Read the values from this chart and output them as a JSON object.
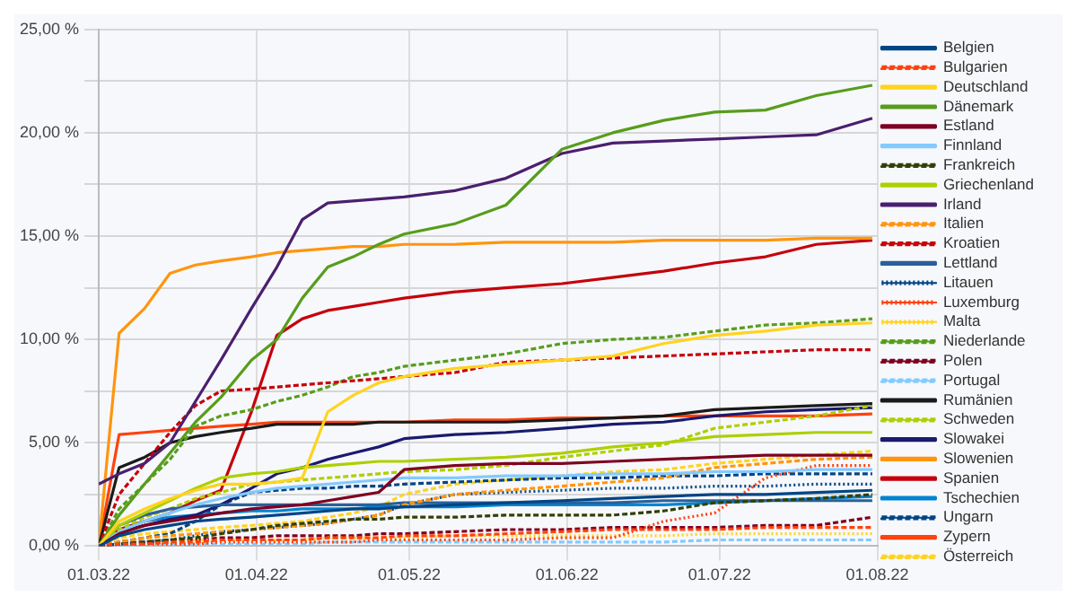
{
  "chart_data": {
    "type": "line",
    "x": [
      "2022-03-01",
      "2022-03-05",
      "2022-03-10",
      "2022-03-15",
      "2022-03-20",
      "2022-03-25",
      "2022-03-31",
      "2022-04-05",
      "2022-04-10",
      "2022-04-15",
      "2022-04-20",
      "2022-04-25",
      "2022-04-30",
      "2022-05-10",
      "2022-05-20",
      "2022-05-31",
      "2022-06-10",
      "2022-06-20",
      "2022-06-30",
      "2022-07-10",
      "2022-07-20",
      "2022-07-31"
    ],
    "xlim": [
      "2022-03-01",
      "2022-08-01"
    ],
    "xticks": [
      {
        "value": "2022-03-01",
        "label": "01.03.22"
      },
      {
        "value": "2022-04-01",
        "label": "01.04.22"
      },
      {
        "value": "2022-05-01",
        "label": "01.05.22"
      },
      {
        "value": "2022-06-01",
        "label": "01.06.22"
      },
      {
        "value": "2022-07-01",
        "label": "01.07.22"
      },
      {
        "value": "2022-08-01",
        "label": "01.08.22"
      }
    ],
    "ylim": [
      0,
      25
    ],
    "yticks": [
      {
        "value": 0,
        "label": "0,00 %"
      },
      {
        "value": 2.5,
        "label": null
      },
      {
        "value": 5,
        "label": "5,00 %"
      },
      {
        "value": 7.5,
        "label": null
      },
      {
        "value": 10,
        "label": "10,00 %"
      },
      {
        "value": 12.5,
        "label": null
      },
      {
        "value": 15,
        "label": "15,00 %"
      },
      {
        "value": 17.5,
        "label": null
      },
      {
        "value": 20,
        "label": "20,00 %"
      },
      {
        "value": 22.5,
        "label": null
      },
      {
        "value": 25,
        "label": "25,00 %"
      }
    ],
    "grid": true,
    "legend": "right",
    "marker": "none",
    "series": [
      {
        "name": "Belgien",
        "color": "#004586",
        "line_style": "solid",
        "values": [
          0,
          0.5,
          0.8,
          1.0,
          1.2,
          1.3,
          1.4,
          1.5,
          1.6,
          1.7,
          1.8,
          1.8,
          1.9,
          2.0,
          2.1,
          2.2,
          2.3,
          2.4,
          2.5,
          2.5,
          2.6,
          2.7
        ]
      },
      {
        "name": "Bulgarien",
        "color": "#ff420e",
        "line_style": "dashed",
        "values": [
          0,
          0.1,
          0.1,
          0.2,
          0.2,
          0.3,
          0.3,
          0.3,
          0.3,
          0.4,
          0.4,
          0.4,
          0.5,
          0.5,
          0.6,
          0.7,
          0.8,
          0.8,
          0.8,
          0.9,
          0.9,
          0.9
        ]
      },
      {
        "name": "Deutschland",
        "color": "#ffd320",
        "line_style": "solid",
        "values": [
          0,
          1.2,
          1.8,
          2.3,
          2.7,
          3.0,
          3.0,
          3.1,
          3.3,
          6.5,
          7.3,
          7.9,
          8.2,
          8.6,
          8.8,
          9.0,
          9.2,
          9.8,
          10.2,
          10.4,
          10.7,
          10.8
        ]
      },
      {
        "name": "Dänemark",
        "color": "#579d1c",
        "line_style": "solid",
        "values": [
          0,
          1.5,
          3.0,
          4.5,
          6.0,
          7.2,
          9.0,
          10.0,
          12.0,
          13.5,
          14.0,
          14.6,
          15.1,
          15.6,
          16.5,
          19.2,
          20.0,
          20.6,
          21.0,
          21.1,
          21.8,
          22.3
        ]
      },
      {
        "name": "Estland",
        "color": "#7e0021",
        "line_style": "solid",
        "values": [
          0,
          0.6,
          1.0,
          1.2,
          1.4,
          1.6,
          1.8,
          1.9,
          2.0,
          2.2,
          2.4,
          2.6,
          3.7,
          3.9,
          4.0,
          4.0,
          4.1,
          4.2,
          4.3,
          4.4,
          4.4,
          4.4
        ]
      },
      {
        "name": "Finnland",
        "color": "#83caff",
        "line_style": "solid",
        "values": [
          0,
          0.7,
          1.2,
          1.6,
          2.0,
          2.3,
          2.6,
          2.8,
          2.9,
          3.0,
          3.1,
          3.2,
          3.3,
          3.3,
          3.4,
          3.4,
          3.5,
          3.5,
          3.6,
          3.6,
          3.7,
          3.7
        ]
      },
      {
        "name": "Frankreich",
        "color": "#314004",
        "line_style": "dashed",
        "values": [
          0,
          0.1,
          0.2,
          0.3,
          0.4,
          0.6,
          0.8,
          1.0,
          1.1,
          1.2,
          1.3,
          1.3,
          1.4,
          1.4,
          1.5,
          1.5,
          1.5,
          1.7,
          2.1,
          2.2,
          2.3,
          2.5
        ]
      },
      {
        "name": "Griechenland",
        "color": "#aecf00",
        "line_style": "solid",
        "values": [
          0,
          1.0,
          1.6,
          2.2,
          2.8,
          3.3,
          3.5,
          3.6,
          3.8,
          3.9,
          4.0,
          4.1,
          4.1,
          4.2,
          4.3,
          4.5,
          4.8,
          5.0,
          5.3,
          5.4,
          5.5,
          5.5
        ]
      },
      {
        "name": "Irland",
        "color": "#4b1f6f",
        "line_style": "solid",
        "values": [
          3.0,
          3.5,
          4.0,
          5.0,
          7.0,
          9.0,
          11.5,
          13.5,
          15.8,
          16.6,
          16.7,
          16.8,
          16.9,
          17.2,
          17.8,
          19.0,
          19.5,
          19.6,
          19.7,
          19.8,
          19.9,
          20.7
        ]
      },
      {
        "name": "Italien",
        "color": "#ff950e",
        "line_style": "dashed",
        "values": [
          0,
          0.2,
          0.4,
          0.5,
          0.6,
          0.7,
          0.8,
          0.9,
          1.0,
          1.1,
          1.3,
          1.5,
          2.0,
          2.5,
          2.7,
          2.9,
          3.1,
          3.3,
          3.8,
          4.0,
          4.2,
          4.3
        ]
      },
      {
        "name": "Kroatien",
        "color": "#c5000b",
        "line_style": "dashed",
        "values": [
          0,
          2.5,
          4.0,
          5.5,
          6.8,
          7.5,
          7.6,
          7.7,
          7.8,
          7.9,
          8.0,
          8.1,
          8.2,
          8.4,
          8.9,
          9.0,
          9.1,
          9.2,
          9.3,
          9.4,
          9.5,
          9.5
        ]
      },
      {
        "name": "Lettland",
        "color": "#2a6099",
        "line_style": "solid",
        "values": [
          0,
          1.0,
          1.5,
          1.8,
          1.9,
          2.0,
          2.0,
          2.0,
          2.0,
          2.0,
          2.0,
          2.0,
          2.1,
          2.1,
          2.1,
          2.1,
          2.1,
          2.2,
          2.2,
          2.2,
          2.2,
          2.2
        ]
      },
      {
        "name": "Litauen",
        "color": "#004586",
        "line_style": "dotted",
        "values": [
          0,
          0.1,
          0.2,
          0.3,
          0.5,
          0.7,
          0.8,
          0.9,
          1.0,
          1.1,
          1.3,
          1.5,
          2.0,
          2.5,
          2.6,
          2.7,
          2.8,
          2.8,
          2.9,
          2.9,
          3.0,
          3.0
        ]
      },
      {
        "name": "Luxemburg",
        "color": "#ff420e",
        "line_style": "dotted",
        "values": [
          0,
          0.1,
          0.1,
          0.1,
          0.1,
          0.2,
          0.2,
          0.2,
          0.2,
          0.2,
          0.2,
          0.3,
          0.3,
          0.3,
          0.3,
          0.4,
          0.4,
          1.2,
          1.6,
          3.3,
          3.9,
          3.9
        ]
      },
      {
        "name": "Malta",
        "color": "#ffd320",
        "line_style": "dotted",
        "values": [
          0,
          0.1,
          0.2,
          0.2,
          0.3,
          0.3,
          0.3,
          0.3,
          0.3,
          0.4,
          0.4,
          0.4,
          0.4,
          0.5,
          0.5,
          0.5,
          0.5,
          0.5,
          0.6,
          0.6,
          0.6,
          0.6
        ]
      },
      {
        "name": "Niederlande",
        "color": "#579d1c",
        "line_style": "dashed",
        "values": [
          0,
          1.8,
          3.0,
          4.2,
          5.8,
          6.3,
          6.6,
          7.0,
          7.3,
          7.7,
          8.2,
          8.4,
          8.7,
          9.0,
          9.3,
          9.8,
          10.0,
          10.1,
          10.4,
          10.7,
          10.8,
          11.0
        ]
      },
      {
        "name": "Polen",
        "color": "#7e0021",
        "line_style": "dashed",
        "values": [
          0,
          0.1,
          0.2,
          0.3,
          0.3,
          0.4,
          0.4,
          0.5,
          0.5,
          0.5,
          0.5,
          0.6,
          0.6,
          0.7,
          0.8,
          0.8,
          0.9,
          0.9,
          0.9,
          1.0,
          1.0,
          1.4
        ]
      },
      {
        "name": "Portugal",
        "color": "#83caff",
        "line_style": "dashed",
        "values": [
          0,
          0.0,
          0.1,
          0.1,
          0.1,
          0.1,
          0.1,
          0.1,
          0.1,
          0.2,
          0.2,
          0.2,
          0.2,
          0.2,
          0.2,
          0.2,
          0.2,
          0.2,
          0.3,
          0.3,
          0.3,
          0.3
        ]
      },
      {
        "name": "Rumänien",
        "color": "#1a1a1a",
        "line_style": "solid",
        "values": [
          0,
          3.8,
          4.3,
          5.0,
          5.3,
          5.5,
          5.7,
          5.9,
          5.9,
          5.9,
          5.9,
          6.0,
          6.0,
          6.0,
          6.0,
          6.1,
          6.2,
          6.3,
          6.6,
          6.7,
          6.8,
          6.9
        ]
      },
      {
        "name": "Schweden",
        "color": "#aecf00",
        "line_style": "dashed",
        "values": [
          0,
          0.8,
          1.4,
          1.8,
          2.3,
          2.6,
          3.0,
          3.1,
          3.2,
          3.3,
          3.4,
          3.5,
          3.6,
          3.7,
          3.9,
          4.3,
          4.6,
          4.9,
          5.7,
          6.0,
          6.3,
          6.8
        ]
      },
      {
        "name": "Slowakei",
        "color": "#1a1a6e",
        "line_style": "solid",
        "values": [
          0,
          0.7,
          1.0,
          1.3,
          1.5,
          2.0,
          2.8,
          3.5,
          3.8,
          4.2,
          4.5,
          4.8,
          5.2,
          5.4,
          5.5,
          5.7,
          5.9,
          6.0,
          6.3,
          6.5,
          6.6,
          6.7
        ]
      },
      {
        "name": "Slowenien",
        "color": "#ff950e",
        "line_style": "solid",
        "values": [
          0,
          10.3,
          11.5,
          13.2,
          13.6,
          13.8,
          14.0,
          14.2,
          14.3,
          14.4,
          14.5,
          14.5,
          14.6,
          14.6,
          14.7,
          14.7,
          14.7,
          14.8,
          14.8,
          14.8,
          14.9,
          14.9
        ]
      },
      {
        "name": "Spanien",
        "color": "#c5000b",
        "line_style": "solid",
        "values": [
          0,
          0.8,
          1.2,
          1.6,
          2.2,
          2.7,
          6.5,
          10.2,
          11.0,
          11.4,
          11.6,
          11.8,
          12.0,
          12.3,
          12.5,
          12.7,
          13.0,
          13.3,
          13.7,
          14.0,
          14.6,
          14.8
        ]
      },
      {
        "name": "Tschechien",
        "color": "#0084d1",
        "line_style": "solid",
        "values": [
          0,
          0.8,
          1.2,
          1.4,
          1.5,
          1.6,
          1.7,
          1.7,
          1.8,
          1.8,
          1.8,
          1.9,
          1.9,
          1.9,
          2.0,
          2.0,
          2.0,
          2.0,
          2.1,
          2.2,
          2.3,
          2.4
        ]
      },
      {
        "name": "Ungarn",
        "color": "#004586",
        "line_style": "dashed",
        "values": [
          0,
          0.2,
          0.4,
          0.6,
          1.2,
          2.0,
          2.6,
          2.7,
          2.8,
          2.8,
          2.9,
          2.9,
          3.0,
          3.1,
          3.2,
          3.3,
          3.3,
          3.4,
          3.4,
          3.5,
          3.5,
          3.5
        ]
      },
      {
        "name": "Zypern",
        "color": "#ff420e",
        "line_style": "solid",
        "values": [
          0,
          5.4,
          5.5,
          5.6,
          5.7,
          5.8,
          5.9,
          6.0,
          6.0,
          6.0,
          6.0,
          6.0,
          6.0,
          6.1,
          6.1,
          6.2,
          6.2,
          6.3,
          6.3,
          6.3,
          6.3,
          6.4
        ]
      },
      {
        "name": "Österreich",
        "color": "#ffd320",
        "line_style": "dashed",
        "values": [
          0,
          0.4,
          0.6,
          0.7,
          0.8,
          0.9,
          1.0,
          1.1,
          1.2,
          1.4,
          1.6,
          1.9,
          2.5,
          3.0,
          3.2,
          3.4,
          3.6,
          3.7,
          4.0,
          4.2,
          4.4,
          4.6
        ]
      }
    ]
  }
}
